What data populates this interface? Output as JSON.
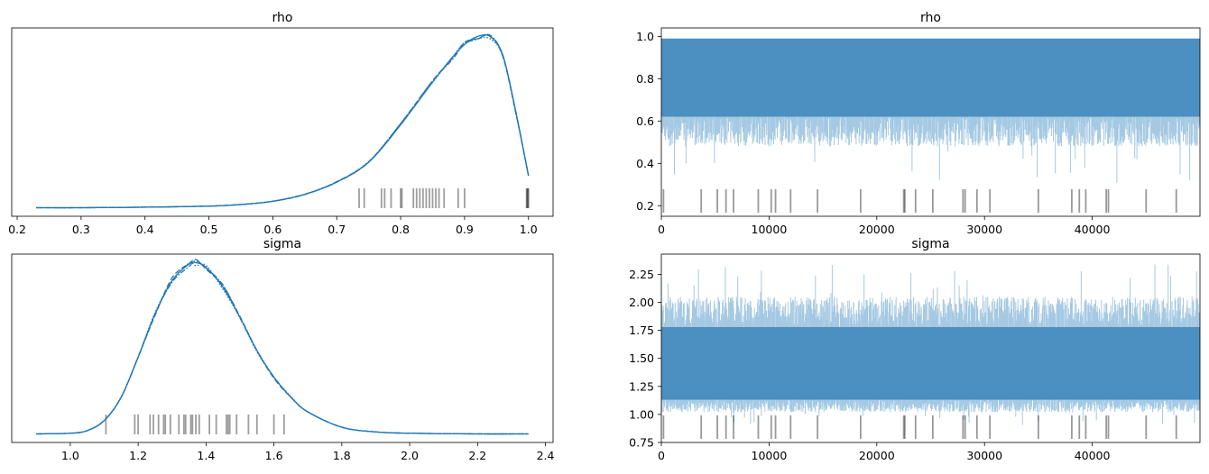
{
  "figure": {
    "panels": 4
  },
  "chart_data": [
    {
      "type": "line",
      "subtype": "density",
      "title": "rho",
      "xlim": [
        0.2,
        1.0
      ],
      "xticks": [
        "0.2",
        "0.3",
        "0.4",
        "0.5",
        "0.6",
        "0.7",
        "0.8",
        "0.9",
        "1.0"
      ],
      "y_visible": false,
      "series_color": "#1f77b4",
      "series": [
        {
          "x": [
            0.23,
            0.3,
            0.4,
            0.5,
            0.55,
            0.6,
            0.65,
            0.7,
            0.75,
            0.8,
            0.85,
            0.88,
            0.9,
            0.92,
            0.94,
            0.96,
            0.98,
            1.0
          ],
          "y": [
            0.0,
            0.0,
            0.01,
            0.03,
            0.06,
            0.12,
            0.25,
            0.48,
            0.85,
            1.55,
            2.35,
            2.8,
            3.05,
            3.2,
            3.2,
            2.85,
            1.8,
            0.6
          ]
        }
      ],
      "rug_x": [
        0.735,
        0.743,
        0.77,
        0.775,
        0.785,
        0.8,
        0.802,
        0.82,
        0.825,
        0.83,
        0.835,
        0.84,
        0.845,
        0.85,
        0.855,
        0.86,
        0.868,
        0.89,
        0.9,
        0.997,
        0.998,
        0.999,
        1.0
      ]
    },
    {
      "type": "line",
      "subtype": "trace",
      "title": "rho",
      "xlim": [
        0,
        50000
      ],
      "ylim": [
        0.15,
        1.04
      ],
      "xticks": [
        "0",
        "10000",
        "20000",
        "30000",
        "40000"
      ],
      "yticks": [
        "0.2",
        "0.4",
        "0.6",
        "0.8",
        "1.0"
      ],
      "band": {
        "upper": 0.99,
        "lower_core": 0.62,
        "lower_tail": 0.48,
        "min": 0.3
      },
      "series_color": "#1f77b4",
      "rug_x": [
        200,
        3700,
        5200,
        6000,
        6700,
        9000,
        10200,
        10600,
        12000,
        14500,
        18500,
        22500,
        22600,
        23600,
        25200,
        28000,
        28200,
        29300,
        30500,
        35000,
        38100,
        38800,
        39400,
        41300,
        41500,
        45000,
        47800
      ]
    },
    {
      "type": "line",
      "subtype": "density",
      "title": "sigma",
      "xlim": [
        0.9,
        2.35
      ],
      "xticks": [
        "1.0",
        "1.2",
        "1.4",
        "1.6",
        "1.8",
        "2.0",
        "2.2",
        "2.4"
      ],
      "y_visible": false,
      "series_color": "#1f77b4",
      "series": [
        {
          "x": [
            0.9,
            1.0,
            1.05,
            1.1,
            1.15,
            1.2,
            1.25,
            1.3,
            1.35,
            1.37,
            1.4,
            1.45,
            1.5,
            1.55,
            1.6,
            1.65,
            1.7,
            1.8,
            1.9,
            2.0,
            2.2,
            2.35
          ],
          "y": [
            0.0,
            0.01,
            0.05,
            0.2,
            0.55,
            1.15,
            1.8,
            2.3,
            2.55,
            2.57,
            2.5,
            2.2,
            1.75,
            1.25,
            0.85,
            0.55,
            0.33,
            0.1,
            0.03,
            0.01,
            0.0,
            0.0
          ]
        }
      ],
      "rug_x": [
        1.105,
        1.19,
        1.2,
        1.235,
        1.245,
        1.26,
        1.275,
        1.28,
        1.295,
        1.32,
        1.335,
        1.34,
        1.355,
        1.36,
        1.37,
        1.38,
        1.41,
        1.43,
        1.46,
        1.465,
        1.47,
        1.49,
        1.525,
        1.55,
        1.6,
        1.63
      ]
    },
    {
      "type": "line",
      "subtype": "trace",
      "title": "sigma",
      "xlim": [
        0,
        50000
      ],
      "ylim": [
        0.75,
        2.43
      ],
      "xticks": [
        "0",
        "10000",
        "20000",
        "30000",
        "40000"
      ],
      "yticks": [
        "0.75",
        "1.00",
        "1.25",
        "1.50",
        "1.75",
        "2.00",
        "2.25"
      ],
      "band": {
        "upper_core": 1.78,
        "upper_tail": 2.05,
        "max": 2.35,
        "lower_core": 1.13,
        "lower_tail": 1.02,
        "min": 0.9
      },
      "series_color": "#1f77b4",
      "rug_x": [
        200,
        3700,
        5200,
        6000,
        6700,
        9000,
        10200,
        10600,
        12000,
        14500,
        18500,
        22500,
        22600,
        23600,
        25200,
        28000,
        28200,
        29300,
        30500,
        35000,
        38100,
        38800,
        39400,
        41300,
        41500,
        45000,
        47800
      ]
    }
  ]
}
